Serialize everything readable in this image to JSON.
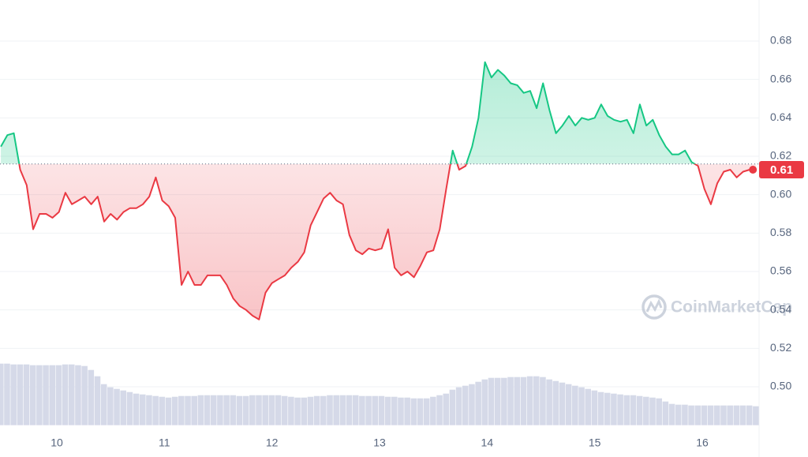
{
  "chart_data": {
    "type": "line",
    "x": [
      9.48,
      9.54,
      9.6,
      9.66,
      9.72,
      9.78,
      9.84,
      9.9,
      9.96,
      10.02,
      10.08,
      10.14,
      10.2,
      10.26,
      10.32,
      10.38,
      10.44,
      10.5,
      10.56,
      10.62,
      10.68,
      10.74,
      10.8,
      10.86,
      10.92,
      10.98,
      11.04,
      11.1,
      11.16,
      11.22,
      11.28,
      11.34,
      11.4,
      11.46,
      11.52,
      11.58,
      11.64,
      11.7,
      11.76,
      11.82,
      11.88,
      11.94,
      12.0,
      12.06,
      12.12,
      12.18,
      12.24,
      12.3,
      12.36,
      12.42,
      12.48,
      12.54,
      12.6,
      12.66,
      12.72,
      12.78,
      12.84,
      12.9,
      12.96,
      13.02,
      13.08,
      13.14,
      13.2,
      13.26,
      13.32,
      13.38,
      13.44,
      13.5,
      13.56,
      13.62,
      13.68,
      13.74,
      13.8,
      13.86,
      13.92,
      13.98,
      14.04,
      14.1,
      14.16,
      14.22,
      14.28,
      14.34,
      14.4,
      14.46,
      14.52,
      14.58,
      14.64,
      14.7,
      14.76,
      14.82,
      14.88,
      14.94,
      15.0,
      15.06,
      15.12,
      15.18,
      15.24,
      15.3,
      15.36,
      15.42,
      15.48,
      15.54,
      15.6,
      15.66,
      15.72,
      15.78,
      15.84,
      15.9,
      15.96,
      16.02,
      16.08,
      16.14,
      16.2,
      16.26,
      16.32,
      16.38,
      16.44,
      16.5
    ],
    "series": [
      {
        "name": "Price",
        "up_color": "#16c784",
        "down_color": "#ea3943",
        "values": [
          0.625,
          0.631,
          0.632,
          0.613,
          0.605,
          0.582,
          0.59,
          0.59,
          0.588,
          0.591,
          0.601,
          0.595,
          0.597,
          0.599,
          0.595,
          0.599,
          0.586,
          0.59,
          0.587,
          0.591,
          0.593,
          0.593,
          0.595,
          0.599,
          0.609,
          0.597,
          0.594,
          0.588,
          0.553,
          0.56,
          0.553,
          0.553,
          0.558,
          0.558,
          0.558,
          0.553,
          0.546,
          0.542,
          0.54,
          0.537,
          0.535,
          0.549,
          0.554,
          0.556,
          0.558,
          0.562,
          0.565,
          0.57,
          0.584,
          0.591,
          0.598,
          0.601,
          0.597,
          0.595,
          0.579,
          0.571,
          0.569,
          0.572,
          0.571,
          0.572,
          0.582,
          0.562,
          0.558,
          0.56,
          0.557,
          0.563,
          0.57,
          0.571,
          0.582,
          0.603,
          0.623,
          0.613,
          0.615,
          0.625,
          0.64,
          0.669,
          0.661,
          0.665,
          0.662,
          0.658,
          0.657,
          0.653,
          0.654,
          0.645,
          0.658,
          0.644,
          0.632,
          0.636,
          0.641,
          0.636,
          0.64,
          0.639,
          0.64,
          0.647,
          0.641,
          0.639,
          0.638,
          0.639,
          0.632,
          0.647,
          0.636,
          0.639,
          0.631,
          0.625,
          0.621,
          0.621,
          0.623,
          0.617,
          0.615,
          0.603,
          0.595,
          0.606,
          0.612,
          0.613,
          0.609,
          0.612,
          0.613,
          0.613
        ]
      },
      {
        "name": "Volume",
        "color": "#d5d9e8",
        "values": [
          78,
          78,
          77,
          77,
          77,
          76,
          76,
          76,
          76,
          76,
          77,
          77,
          76,
          75,
          70,
          62,
          52,
          48,
          46,
          44,
          42,
          40,
          39,
          38,
          37,
          36,
          35,
          36,
          37,
          37,
          37,
          38,
          38,
          38,
          38,
          38,
          38,
          37,
          37,
          38,
          38,
          38,
          38,
          38,
          37,
          36,
          35,
          35,
          36,
          37,
          37,
          38,
          38,
          38,
          38,
          38,
          37,
          37,
          37,
          37,
          36,
          36,
          35,
          35,
          34,
          34,
          34,
          36,
          38,
          40,
          45,
          48,
          50,
          52,
          55,
          58,
          60,
          60,
          60,
          61,
          61,
          61,
          62,
          62,
          61,
          58,
          56,
          54,
          52,
          50,
          48,
          46,
          44,
          42,
          41,
          40,
          39,
          38,
          38,
          37,
          36,
          35,
          34,
          30,
          27,
          26,
          26,
          25,
          25,
          25,
          25,
          25,
          25,
          25,
          25,
          25,
          25,
          24
        ]
      }
    ],
    "reference_price": 0.616,
    "price_label": "0.61",
    "volume_lim": [
      0,
      100
    ],
    "xlim": [
      9.472,
      16.528
    ],
    "xticks": [
      10,
      11,
      12,
      13,
      14,
      15,
      16
    ],
    "ylim": [
      0.48,
      0.7
    ],
    "yticks": [
      {
        "value": 0.5,
        "label": "0.50"
      },
      0.52,
      0.54,
      0.56,
      0.58,
      {
        "value": 0.6,
        "label": "0.60"
      },
      0.62,
      0.64,
      0.66,
      0.68
    ],
    "grid": true,
    "watermark": "CoinMarketCap"
  }
}
